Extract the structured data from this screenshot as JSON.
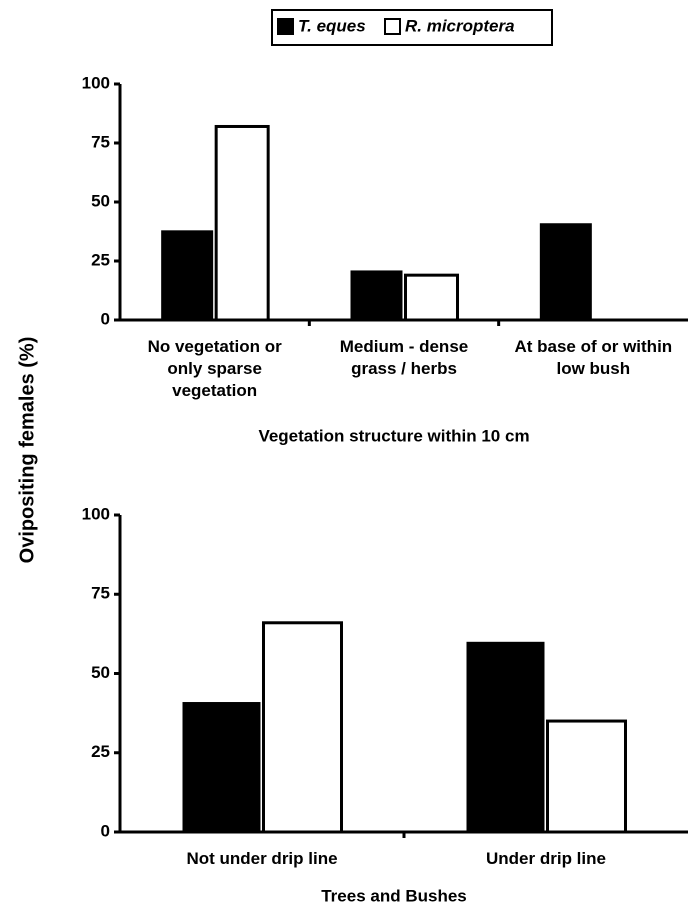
{
  "chart_data": [
    {
      "type": "bar",
      "ylabel": "Ovipositing females (%)",
      "xlabel": "Vegetation structure within 10 cm",
      "categories": [
        "No vegetation or only sparse vegetation",
        "Medium - dense grass / herbs",
        "At base of or within low bush"
      ],
      "series": [
        {
          "name": "T. eques",
          "color": "#000000",
          "values": [
            38,
            21,
            41
          ]
        },
        {
          "name": "R. microptera",
          "color": "#ffffff",
          "values": [
            82,
            19,
            0
          ]
        }
      ],
      "ylim": [
        0,
        100
      ],
      "yticks": [
        0,
        25,
        50,
        75,
        100
      ],
      "legend": "top"
    },
    {
      "type": "bar",
      "xlabel": "Trees and Bushes",
      "categories": [
        "Not under drip line",
        "Under drip line"
      ],
      "series": [
        {
          "color": "#000000",
          "values": [
            41,
            60
          ]
        },
        {
          "color": "#ffffff",
          "values": [
            66,
            35
          ]
        }
      ],
      "ylim": [
        0,
        100
      ],
      "yticks": [
        0,
        25,
        50,
        75,
        100
      ]
    }
  ]
}
